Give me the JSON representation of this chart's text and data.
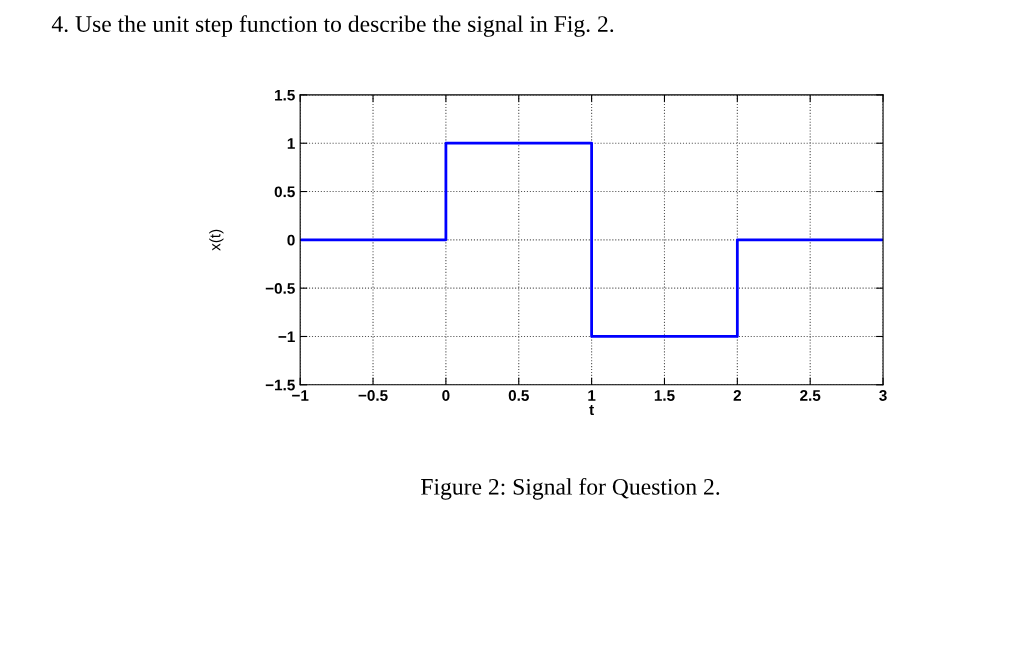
{
  "chart_data": {
    "type": "line",
    "title": "4. Use the unit step function to describe the signal in Fig. 2.",
    "xlabel": "t",
    "ylabel": "x(t)",
    "annotations": [
      "Figure 2: Signal for Question 2."
    ],
    "series": [
      {
        "color": "#0000ff",
        "x": [
          -1,
          0,
          0,
          1,
          1,
          2,
          2,
          3
        ],
        "values": [
          0,
          0,
          1,
          1,
          -1,
          -1,
          0,
          0
        ]
      }
    ],
    "xlim": [
      -1,
      3
    ],
    "xticks": [
      -1,
      -0.5,
      0,
      0.5,
      1,
      1.5,
      2,
      2.5,
      3
    ],
    "ylim": [
      -1.5,
      1.5
    ],
    "yticks": [
      -1.5,
      -1,
      -0.5,
      0,
      0.5,
      1,
      1.5
    ],
    "grid": true,
    "line_style": "solid",
    "marker": "none"
  }
}
